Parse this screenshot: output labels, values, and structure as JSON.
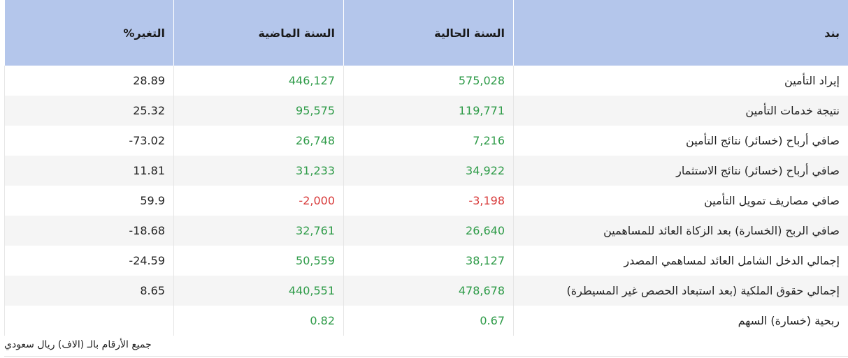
{
  "table": {
    "headers": {
      "item": "بند",
      "current": "السنة الحالية",
      "previous": "السنة الماضية",
      "change": "التغير%"
    },
    "rows": [
      {
        "item": "إيراد التأمين",
        "current": "575,028",
        "previous": "446,127",
        "change": "28.89"
      },
      {
        "item": "نتيجة خدمات التأمين",
        "current": "119,771",
        "previous": "95,575",
        "change": "25.32"
      },
      {
        "item": "صافي أرباح (خسائر) نتائج التأمين",
        "current": "7,216",
        "previous": "26,748",
        "change": "-73.02"
      },
      {
        "item": "صافي أرباح (خسائر) نتائج الاستثمار",
        "current": "34,922",
        "previous": "31,233",
        "change": "11.81"
      },
      {
        "item": "صافي مصاريف تمويل التأمين",
        "current": "-3,198",
        "previous": "-2,000",
        "change": "59.9"
      },
      {
        "item": "صافي الربح (الخسارة) بعد الزكاة العائد للمساهمين",
        "current": "26,640",
        "previous": "32,761",
        "change": "-18.68"
      },
      {
        "item": "إجمالي الدخل الشامل العائد لمساهمي المصدر",
        "current": "38,127",
        "previous": "50,559",
        "change": "-24.59"
      },
      {
        "item": "إجمالي حقوق الملكية (بعد استبعاد الحصص غير المسيطرة)",
        "current": "478,678",
        "previous": "440,551",
        "change": "8.65"
      },
      {
        "item": "ربحية (خسارة) السهم",
        "current": "0.67",
        "previous": "0.82",
        "change": ""
      }
    ]
  },
  "footnote": "جميع الأرقام بالـ (الاف) ريال سعودي",
  "colors": {
    "header_bg": "#b4c6eb",
    "positive": "#2e9b48",
    "negative": "#d83a3a"
  }
}
